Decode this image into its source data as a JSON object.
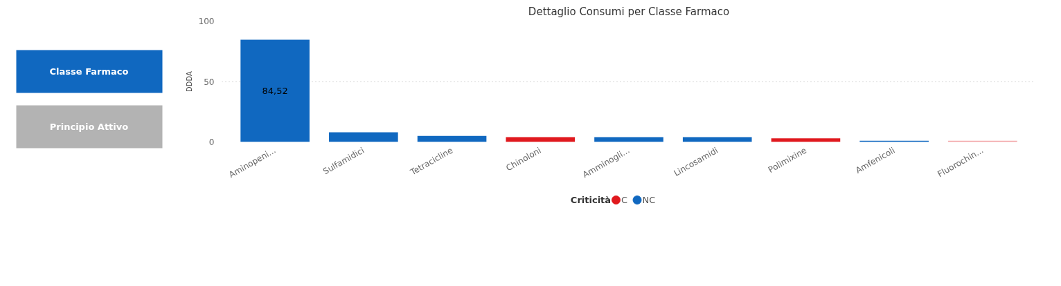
{
  "chart_data": {
    "type": "bar",
    "title": "Dettaglio Consumi per Classe Farmaco",
    "ylabel": "DDDA",
    "legend_title": "Criticità",
    "annotations": [
      "Classe Farmaco",
      "Principio Attivo"
    ],
    "categories": [
      "Aminopeni...",
      "Sulfamidici",
      "Tetracicline",
      "Chinoloni",
      "Amminogli...",
      "Lincosamidi",
      "Polimixine",
      "Amfenicoli",
      "Fluorochin..."
    ],
    "series": [
      {
        "name": "C",
        "colors": [
          "#e0191e",
          "#e0191e",
          "#e0191e",
          "#e0191e",
          "#e0191e",
          "#e0191e",
          "#e0191e",
          "#e0191e",
          "#f2a3a5"
        ],
        "values": [
          null,
          null,
          null,
          4,
          null,
          null,
          3,
          null,
          1
        ]
      },
      {
        "name": "NC",
        "color": "#1068c0",
        "values": [
          84.52,
          8,
          5,
          null,
          4,
          4,
          null,
          1,
          null
        ],
        "value_labels": [
          "84,52",
          null,
          null,
          null,
          null,
          null,
          null,
          null,
          null
        ]
      }
    ],
    "ylim": [
      0,
      100
    ],
    "yticks": [
      0,
      50,
      100
    ],
    "grid": "y",
    "legend": "bottom"
  }
}
